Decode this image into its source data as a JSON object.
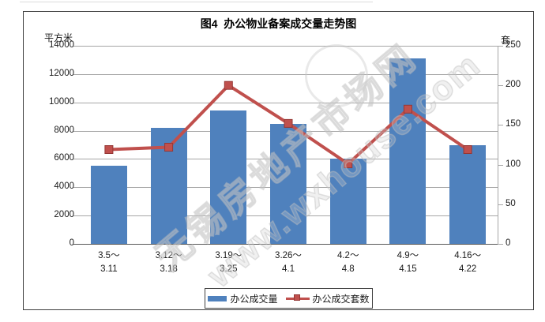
{
  "chart_data": {
    "type": "combo-bar-line",
    "title": "图4  办公物业备案成交量走势图",
    "left_axis": {
      "unit": "平方米",
      "min": 0,
      "max": 14000,
      "step": 2000
    },
    "right_axis": {
      "unit": "套",
      "min": 0,
      "max": 250,
      "step": 50
    },
    "categories": [
      {
        "line1": "3.5～",
        "line2": "3.11"
      },
      {
        "line1": "3.12～",
        "line2": "3.18"
      },
      {
        "line1": "3.19～",
        "line2": "3.25"
      },
      {
        "line1": "3.26～",
        "line2": "4.1"
      },
      {
        "line1": "4.2～",
        "line2": "4.8"
      },
      {
        "line1": "4.9～",
        "line2": "4.15"
      },
      {
        "line1": "4.16～",
        "line2": "4.22"
      }
    ],
    "series": [
      {
        "name": "办公成交量",
        "type": "bar",
        "axis": "left",
        "color": "#4f81bd",
        "values": [
          5500,
          8200,
          9400,
          8470,
          6000,
          13100,
          7000
        ]
      },
      {
        "name": "办公成交套数",
        "type": "line",
        "axis": "right",
        "color": "#c0504d",
        "marker_edge": "#953735",
        "values": [
          119,
          122,
          200,
          152,
          101,
          170,
          119
        ]
      }
    ],
    "legend_position": "bottom",
    "grid": true
  },
  "watermark": {
    "site_name": "无锡房地产市场网",
    "site_url": "www.wxhouse.com"
  },
  "colors": {
    "bar": "#4f81bd",
    "line": "#c0504d",
    "grid": "#a6a6a6",
    "axis": "#595959"
  }
}
